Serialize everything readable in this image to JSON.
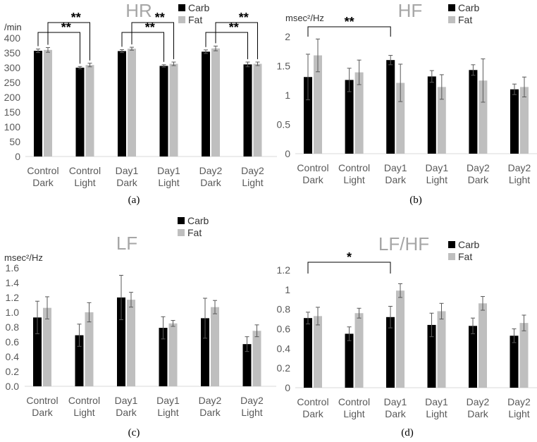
{
  "figure": {
    "colors": {
      "carb": "#000000",
      "fat": "#bfbfbf",
      "axis": "#595959",
      "title": "#a6a6a6"
    }
  },
  "chart_data": [
    {
      "id": "a",
      "type": "bar",
      "title": "HR",
      "ylabel": "/min",
      "caption": "(a)",
      "ylim": [
        0,
        400
      ],
      "yticks": [
        0,
        50,
        100,
        150,
        200,
        250,
        300,
        350,
        400
      ],
      "categories": [
        "Control\nDark",
        "Control\nLight",
        "Day1\nDark",
        "Day1\nLight",
        "Day2\nDark",
        "Day2\nLight"
      ],
      "series": [
        {
          "name": "Carb",
          "values": [
            357,
            300,
            356,
            306,
            354,
            311
          ],
          "errors": [
            6,
            4,
            5,
            4,
            6,
            8
          ]
        },
        {
          "name": "Fat",
          "values": [
            360,
            309,
            364,
            313,
            365,
            313
          ],
          "errors": [
            8,
            6,
            5,
            6,
            8,
            6
          ]
        }
      ],
      "significance": [
        {
          "label": "**",
          "from": 0,
          "to": 1,
          "series_from": "Carb",
          "series_to": "Carb"
        },
        {
          "label": "**",
          "from": 0,
          "to": 1,
          "series_from": "Fat",
          "series_to": "Fat"
        },
        {
          "label": "**",
          "from": 2,
          "to": 3,
          "series_from": "Carb",
          "series_to": "Carb"
        },
        {
          "label": "**",
          "from": 2,
          "to": 3,
          "series_from": "Fat",
          "series_to": "Fat"
        },
        {
          "label": "**",
          "from": 4,
          "to": 5,
          "series_from": "Carb",
          "series_to": "Carb"
        },
        {
          "label": "**",
          "from": 4,
          "to": 5,
          "series_from": "Fat",
          "series_to": "Fat"
        }
      ]
    },
    {
      "id": "b",
      "type": "bar",
      "title": "HF",
      "ylabel": "msec²/Hz",
      "caption": "(b)",
      "ylim": [
        0,
        2
      ],
      "yticks": [
        0,
        0.5,
        1,
        1.5,
        2
      ],
      "categories": [
        "Control\nDark",
        "Control\nLight",
        "Day1\nDark",
        "Day1\nLight",
        "Day2\nDark",
        "Day2\nLight"
      ],
      "series": [
        {
          "name": "Carb",
          "values": [
            1.31,
            1.26,
            1.6,
            1.32,
            1.43,
            1.1
          ],
          "errors": [
            0.39,
            0.2,
            0.08,
            0.1,
            0.09,
            0.09
          ]
        },
        {
          "name": "Fat",
          "values": [
            1.68,
            1.39,
            1.21,
            1.14,
            1.25,
            1.14
          ],
          "errors": [
            0.28,
            0.21,
            0.32,
            0.21,
            0.37,
            0.17
          ]
        }
      ],
      "significance": [
        {
          "label": "**",
          "from": 0,
          "to": 2,
          "series_from": "Carb",
          "series_to": "Carb"
        }
      ]
    },
    {
      "id": "c",
      "type": "bar",
      "title": "LF",
      "ylabel": "msec²/Hz",
      "caption": "(c)",
      "ylim": [
        0,
        1.6
      ],
      "yticks": [
        "0.0",
        "0.2",
        "0.4",
        "0.6",
        "0.8",
        "1.0",
        "1.2",
        "1.4",
        "1.6"
      ],
      "categories": [
        "Control\nDark",
        "Control\nLight",
        "Day1\nDark",
        "Day1\nLight",
        "Day2\nDark",
        "Day2\nLight"
      ],
      "series": [
        {
          "name": "Carb",
          "values": [
            0.93,
            0.69,
            1.2,
            0.79,
            0.92,
            0.57
          ],
          "errors": [
            0.22,
            0.15,
            0.3,
            0.15,
            0.27,
            0.1
          ]
        },
        {
          "name": "Fat",
          "values": [
            1.06,
            1.0,
            1.17,
            0.85,
            1.07,
            0.75
          ],
          "errors": [
            0.15,
            0.13,
            0.1,
            0.04,
            0.09,
            0.08
          ]
        }
      ],
      "significance": []
    },
    {
      "id": "d",
      "type": "bar",
      "title": "LF/HF",
      "ylabel": "",
      "caption": "(d)",
      "ylim": [
        0,
        1.2
      ],
      "yticks": [
        0,
        0.2,
        0.4,
        0.6,
        0.8,
        1,
        1.2
      ],
      "categories": [
        "Control\nDark",
        "Control\nLight",
        "Day1\nDark",
        "Day1\nLight",
        "Day2\nDark",
        "Day2\nLight"
      ],
      "series": [
        {
          "name": "Carb",
          "values": [
            0.71,
            0.55,
            0.72,
            0.64,
            0.63,
            0.53
          ],
          "errors": [
            0.06,
            0.07,
            0.11,
            0.12,
            0.08,
            0.07
          ]
        },
        {
          "name": "Fat",
          "values": [
            0.73,
            0.76,
            0.99,
            0.78,
            0.86,
            0.66
          ],
          "errors": [
            0.09,
            0.05,
            0.07,
            0.08,
            0.07,
            0.08
          ]
        }
      ],
      "significance": [
        {
          "label": "*",
          "from": 0,
          "to": 2,
          "series_from": "Carb",
          "series_to": "Carb"
        }
      ]
    }
  ]
}
